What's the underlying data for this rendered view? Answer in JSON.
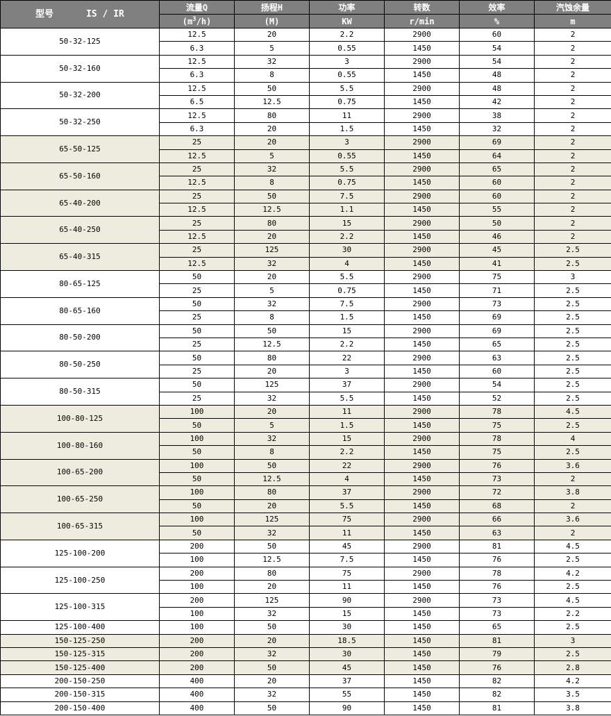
{
  "colors": {
    "header_bg": "#808080",
    "header_text": "#FFFFFF",
    "shaded_row": "#EEEBDF",
    "border": "#000000"
  },
  "header": {
    "model": "型号      IS / IR",
    "columns": [
      {
        "name": "流量Q",
        "unit_pre": "(m",
        "unit_sup": "3",
        "unit_post": "/h)"
      },
      {
        "name": "扬程H",
        "unit": "(M)"
      },
      {
        "name": "功率",
        "unit": "KW"
      },
      {
        "name": "转数",
        "unit": "r/min"
      },
      {
        "name": "效率",
        "unit": "%"
      },
      {
        "name": "汽蚀余量",
        "unit": "m"
      }
    ]
  },
  "models": [
    {
      "model": "50-32-125",
      "shaded": false,
      "rows": [
        [
          "12.5",
          "20",
          "2.2",
          "2900",
          "60",
          "2"
        ],
        [
          "6.3",
          "5",
          "0.55",
          "1450",
          "54",
          "2"
        ]
      ]
    },
    {
      "model": "50-32-160",
      "shaded": false,
      "rows": [
        [
          "12.5",
          "32",
          "3",
          "2900",
          "54",
          "2"
        ],
        [
          "6.3",
          "8",
          "0.55",
          "1450",
          "48",
          "2"
        ]
      ]
    },
    {
      "model": "50-32-200",
      "shaded": false,
      "rows": [
        [
          "12.5",
          "50",
          "5.5",
          "2900",
          "48",
          "2"
        ],
        [
          "6.5",
          "12.5",
          "0.75",
          "1450",
          "42",
          "2"
        ]
      ]
    },
    {
      "model": "50-32-250",
      "shaded": false,
      "rows": [
        [
          "12.5",
          "80",
          "11",
          "2900",
          "38",
          "2"
        ],
        [
          "6.3",
          "20",
          "1.5",
          "1450",
          "32",
          "2"
        ]
      ]
    },
    {
      "model": "65-50-125",
      "shaded": true,
      "rows": [
        [
          "25",
          "20",
          "3",
          "2900",
          "69",
          "2"
        ],
        [
          "12.5",
          "5",
          "0.55",
          "1450",
          "64",
          "2"
        ]
      ]
    },
    {
      "model": "65-50-160",
      "shaded": true,
      "rows": [
        [
          "25",
          "32",
          "5.5",
          "2900",
          "65",
          "2"
        ],
        [
          "12.5",
          "8",
          "0.75",
          "1450",
          "60",
          "2"
        ]
      ]
    },
    {
      "model": "65-40-200",
      "shaded": true,
      "rows": [
        [
          "25",
          "50",
          "7.5",
          "2900",
          "60",
          "2"
        ],
        [
          "12.5",
          "12.5",
          "1.1",
          "1450",
          "55",
          "2"
        ]
      ]
    },
    {
      "model": "65-40-250",
      "shaded": true,
      "rows": [
        [
          "25",
          "80",
          "15",
          "2900",
          "50",
          "2"
        ],
        [
          "12.5",
          "20",
          "2.2",
          "1450",
          "46",
          "2"
        ]
      ]
    },
    {
      "model": "65-40-315",
      "shaded": true,
      "rows": [
        [
          "25",
          "125",
          "30",
          "2900",
          "45",
          "2.5"
        ],
        [
          "12.5",
          "32",
          "4",
          "1450",
          "41",
          "2.5"
        ]
      ]
    },
    {
      "model": "80-65-125",
      "shaded": false,
      "rows": [
        [
          "50",
          "20",
          "5.5",
          "2900",
          "75",
          "3"
        ],
        [
          "25",
          "5",
          "0.75",
          "1450",
          "71",
          "2.5"
        ]
      ]
    },
    {
      "model": "80-65-160",
      "shaded": false,
      "rows": [
        [
          "50",
          "32",
          "7.5",
          "2900",
          "73",
          "2.5"
        ],
        [
          "25",
          "8",
          "1.5",
          "1450",
          "69",
          "2.5"
        ]
      ]
    },
    {
      "model": "80-50-200",
      "shaded": false,
      "rows": [
        [
          "50",
          "50",
          "15",
          "2900",
          "69",
          "2.5"
        ],
        [
          "25",
          "12.5",
          "2.2",
          "1450",
          "65",
          "2.5"
        ]
      ]
    },
    {
      "model": "80-50-250",
      "shaded": false,
      "rows": [
        [
          "50",
          "80",
          "22",
          "2900",
          "63",
          "2.5"
        ],
        [
          "25",
          "20",
          "3",
          "1450",
          "60",
          "2.5"
        ]
      ]
    },
    {
      "model": "80-50-315",
      "shaded": false,
      "rows": [
        [
          "50",
          "125",
          "37",
          "2900",
          "54",
          "2.5"
        ],
        [
          "25",
          "32",
          "5.5",
          "1450",
          "52",
          "2.5"
        ]
      ]
    },
    {
      "model": "100-80-125",
      "shaded": true,
      "rows": [
        [
          "100",
          "20",
          "11",
          "2900",
          "78",
          "4.5"
        ],
        [
          "50",
          "5",
          "1.5",
          "1450",
          "75",
          "2.5"
        ]
      ]
    },
    {
      "model": "100-80-160",
      "shaded": true,
      "rows": [
        [
          "100",
          "32",
          "15",
          "2900",
          "78",
          "4"
        ],
        [
          "50",
          "8",
          "2.2",
          "1450",
          "75",
          "2.5"
        ]
      ]
    },
    {
      "model": "100-65-200",
      "shaded": true,
      "rows": [
        [
          "100",
          "50",
          "22",
          "2900",
          "76",
          "3.6"
        ],
        [
          "50",
          "12.5",
          "4",
          "1450",
          "73",
          "2"
        ]
      ]
    },
    {
      "model": "100-65-250",
      "shaded": true,
      "rows": [
        [
          "100",
          "80",
          "37",
          "2900",
          "72",
          "3.8"
        ],
        [
          "50",
          "20",
          "5.5",
          "1450",
          "68",
          "2"
        ]
      ]
    },
    {
      "model": "100-65-315",
      "shaded": true,
      "rows": [
        [
          "100",
          "125",
          "75",
          "2900",
          "66",
          "3.6"
        ],
        [
          "50",
          "32",
          "11",
          "1450",
          "63",
          "2"
        ]
      ]
    },
    {
      "model": "125-100-200",
      "shaded": false,
      "rows": [
        [
          "200",
          "50",
          "45",
          "2900",
          "81",
          "4.5"
        ],
        [
          "100",
          "12.5",
          "7.5",
          "1450",
          "76",
          "2.5"
        ]
      ]
    },
    {
      "model": "125-100-250",
      "shaded": false,
      "rows": [
        [
          "200",
          "80",
          "75",
          "2900",
          "78",
          "4.2"
        ],
        [
          "100",
          "20",
          "11",
          "1450",
          "76",
          "2.5"
        ]
      ]
    },
    {
      "model": "125-100-315",
      "shaded": false,
      "rows": [
        [
          "200",
          "125",
          "90",
          "2900",
          "73",
          "4.5"
        ],
        [
          "100",
          "32",
          "15",
          "1450",
          "73",
          "2.2"
        ]
      ]
    },
    {
      "model": "125-100-400",
      "shaded": false,
      "rows": [
        [
          "100",
          "50",
          "30",
          "1450",
          "65",
          "2.5"
        ]
      ]
    },
    {
      "model": "150-125-250",
      "shaded": true,
      "rows": [
        [
          "200",
          "20",
          "18.5",
          "1450",
          "81",
          "3"
        ]
      ]
    },
    {
      "model": "150-125-315",
      "shaded": true,
      "rows": [
        [
          "200",
          "32",
          "30",
          "1450",
          "79",
          "2.5"
        ]
      ]
    },
    {
      "model": "150-125-400",
      "shaded": true,
      "rows": [
        [
          "200",
          "50",
          "45",
          "1450",
          "76",
          "2.8"
        ]
      ]
    },
    {
      "model": "200-150-250",
      "shaded": false,
      "rows": [
        [
          "400",
          "20",
          "37",
          "1450",
          "82",
          "4.2"
        ]
      ]
    },
    {
      "model": "200-150-315",
      "shaded": false,
      "rows": [
        [
          "400",
          "32",
          "55",
          "1450",
          "82",
          "3.5"
        ]
      ]
    },
    {
      "model": "200-150-400",
      "shaded": false,
      "rows": [
        [
          "400",
          "50",
          "90",
          "1450",
          "81",
          "3.8"
        ]
      ]
    }
  ]
}
